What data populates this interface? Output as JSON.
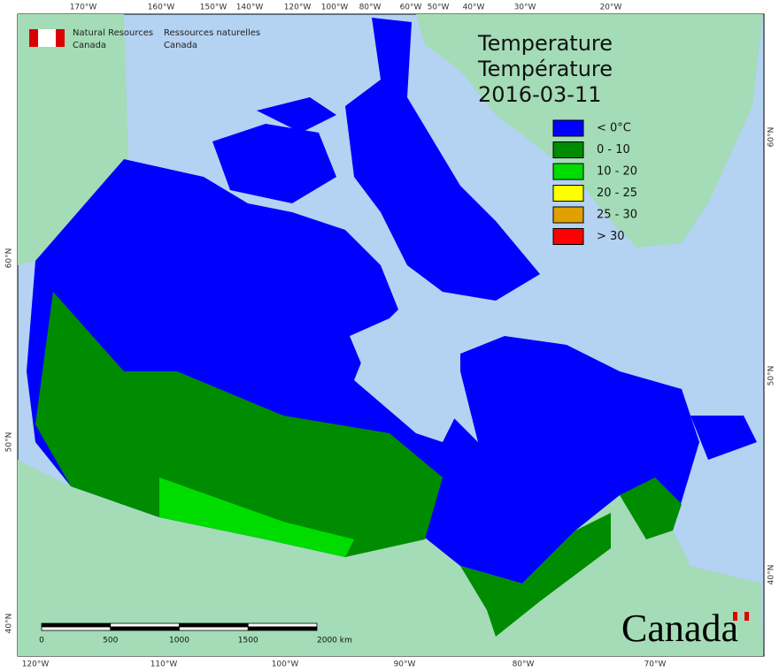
{
  "header": {
    "agency_en": [
      "Natural Resources",
      "Canada"
    ],
    "agency_fr": [
      "Ressources naturelles",
      "Canada"
    ]
  },
  "title": [
    "Temperature",
    "Température",
    "2016-03-11"
  ],
  "legend": [
    {
      "label": "< 0°C",
      "color": "#0000ff"
    },
    {
      "label": "0 - 10",
      "color": "#008c00"
    },
    {
      "label": "10 - 20",
      "color": "#00dc00"
    },
    {
      "label": "20 - 25",
      "color": "#ffff00"
    },
    {
      "label": "25 - 30",
      "color": "#e0a000"
    },
    {
      "label": "> 30",
      "color": "#ff0000"
    }
  ],
  "graticule": {
    "top": [
      "170°W",
      "160°W",
      "150°W",
      "140°W",
      "120°W",
      "100°W",
      "80°W",
      "60°W",
      "50°W",
      "40°W",
      "30°W",
      "20°W"
    ],
    "bottom": [
      "120°W",
      "110°W",
      "100°W",
      "90°W",
      "80°W",
      "70°W"
    ],
    "left": [
      "60°N",
      "50°N",
      "40°N"
    ],
    "right": [
      "60°N",
      "50°N",
      "40°N"
    ]
  },
  "scale_bar": [
    "0",
    "500",
    "1000",
    "1500",
    "2000 km"
  ],
  "wordmark": "Canada"
}
